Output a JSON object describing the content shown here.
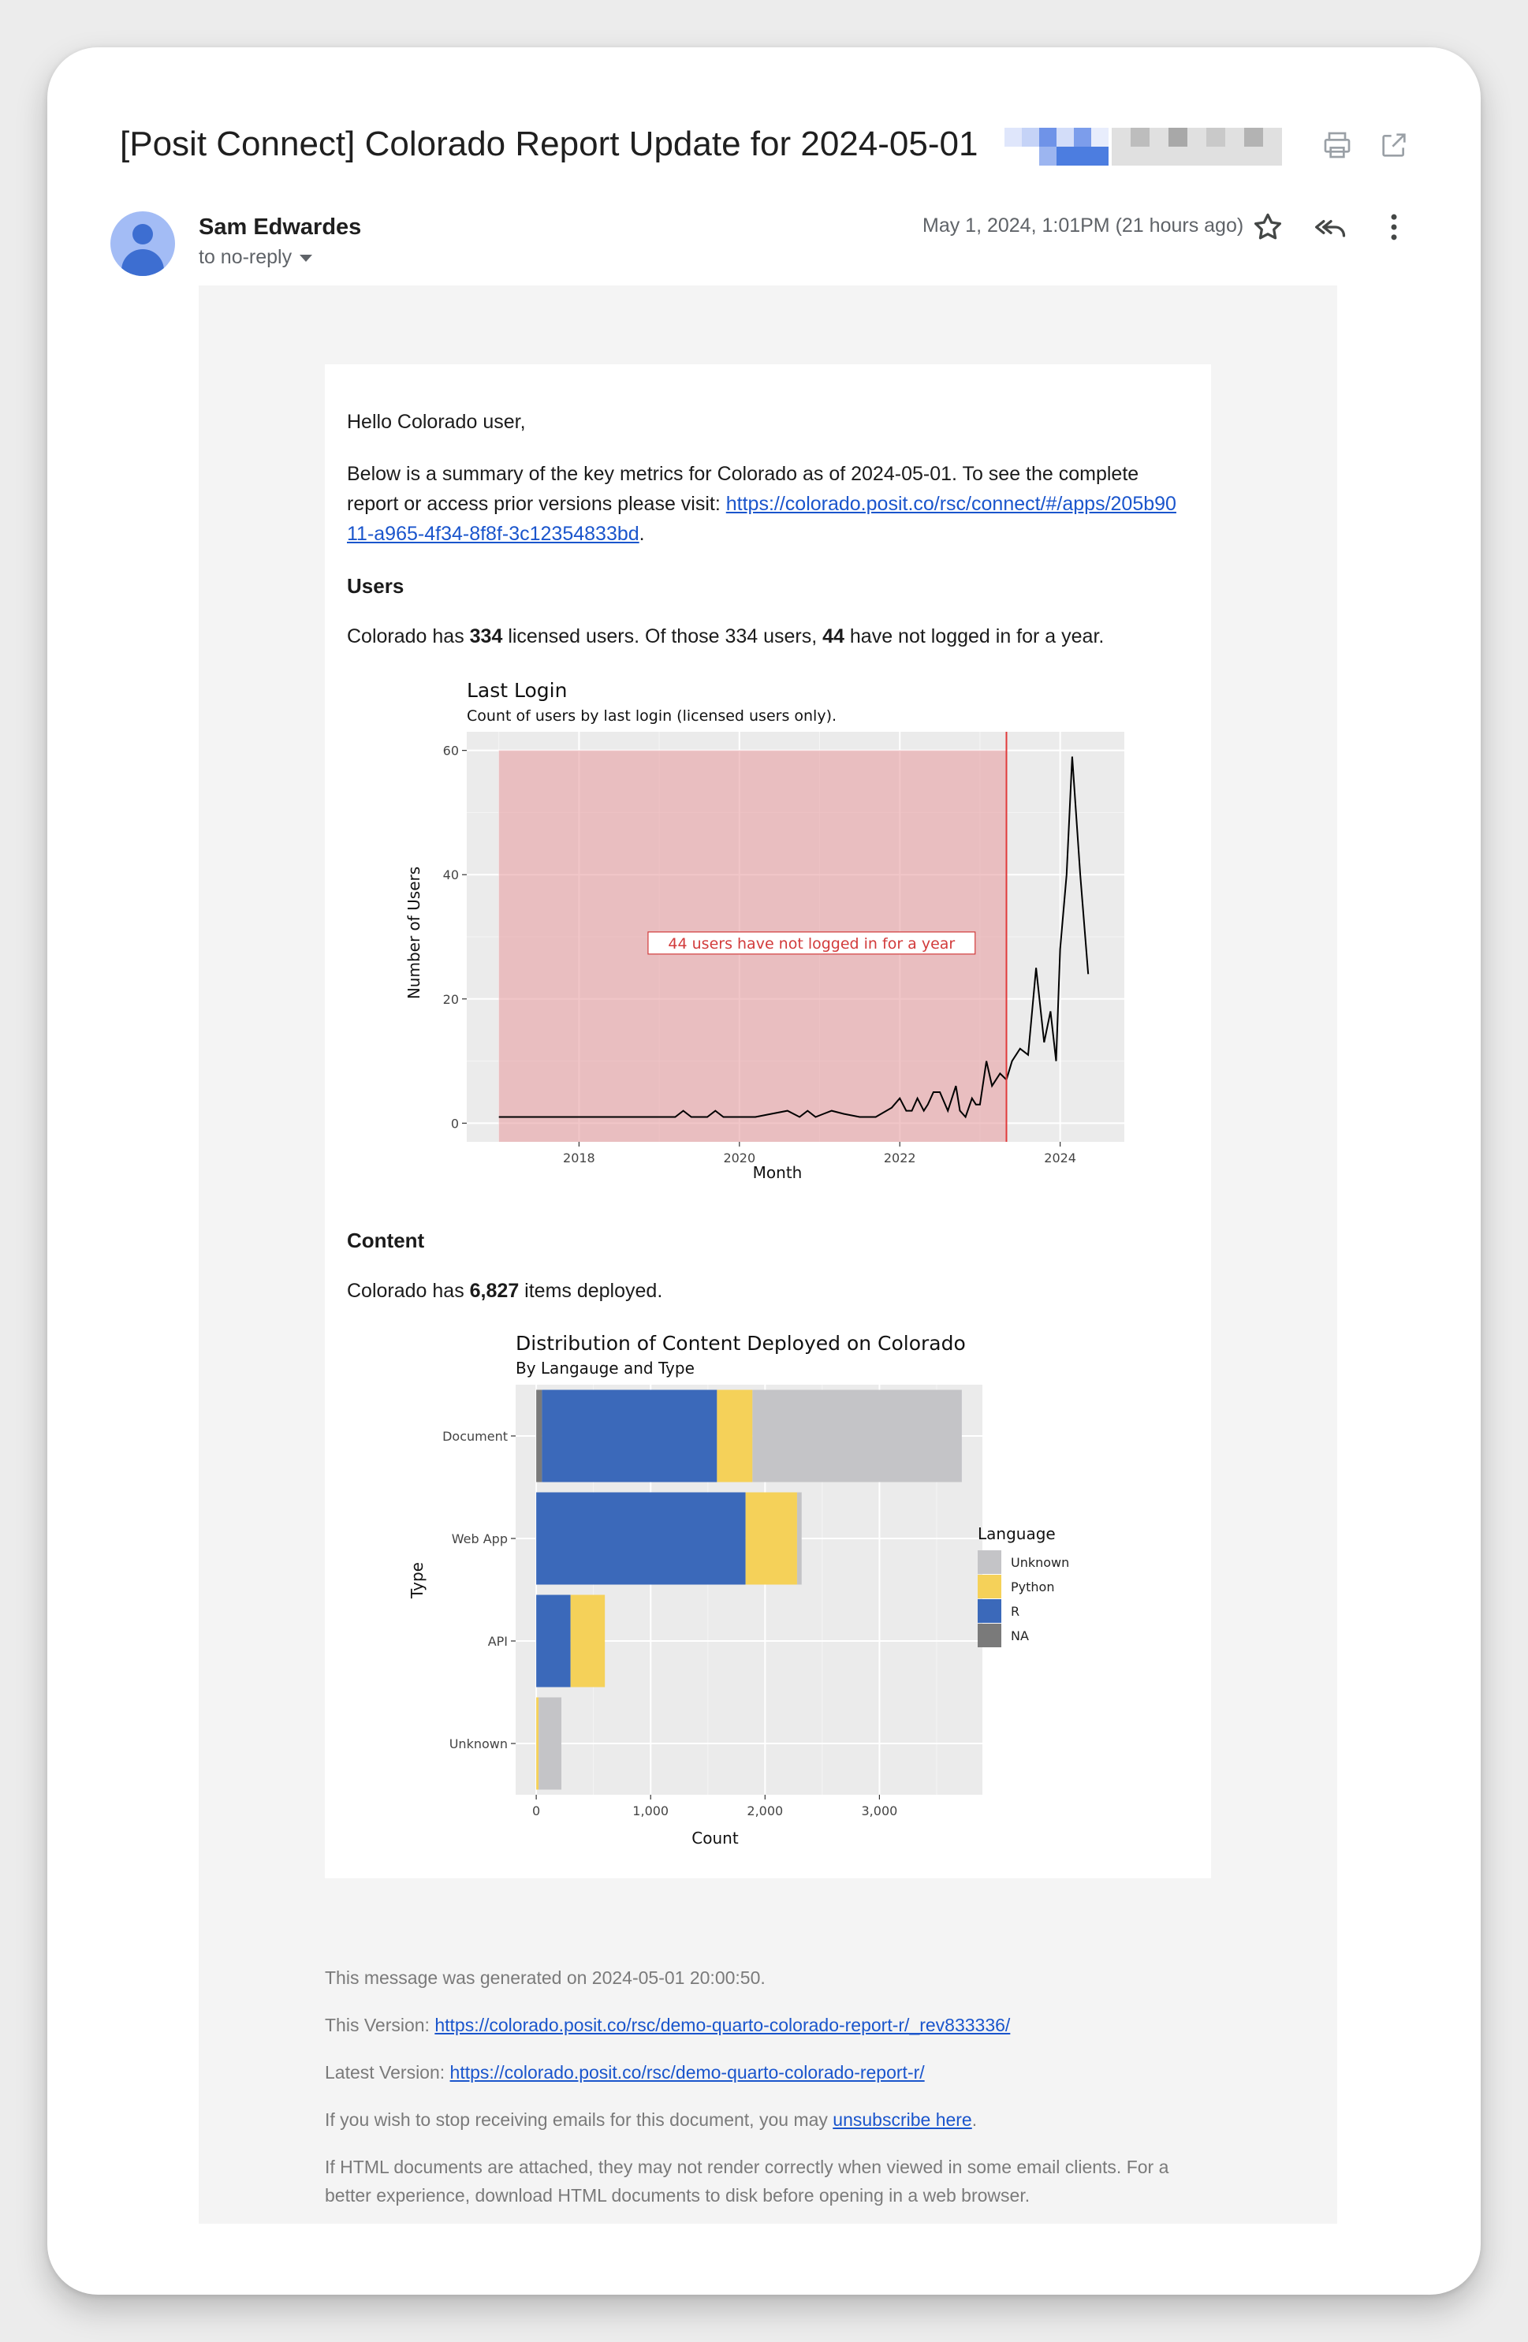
{
  "subject": "[Posit Connect] Colorado Report Update for 2024-05-01",
  "sender": {
    "name": "Sam Edwardes",
    "to": "to no-reply",
    "date": "May 1, 2024, 1:01PM (21 hours ago)"
  },
  "icons": {
    "print": "print-icon",
    "open_new": "open-in-new-icon",
    "star": "star-icon",
    "reply_all": "reply-all-icon",
    "more": "more-vert-icon",
    "recipient_dropdown": "chevron-down-icon"
  },
  "body": {
    "greeting": "Hello Colorado user,",
    "intro_text": "Below is a summary of the key metrics for Colorado as of 2024-05-01. To see the complete report or access prior versions please visit: ",
    "intro_link": "https://colorado.posit.co/rsc/connect/#/apps/205b9011-a965-4f34-8f8f-3c12354833bd",
    "users_heading": "Users",
    "users_text": {
      "a": "Colorado has ",
      "licensed": "334",
      "b": " licensed users. Of those 334 users, ",
      "inactive": "44",
      "c": " have not logged in for a year."
    },
    "content_heading": "Content",
    "content_text": {
      "a": "Colorado has ",
      "items": "6,827",
      "b": " items deployed."
    }
  },
  "chart_data": [
    {
      "type": "line",
      "title": "Last Login",
      "subtitle": "Count of users by last login (licensed users only).",
      "xlabel": "Month",
      "ylabel": "Number of Users",
      "xlim": [
        2016.6,
        2024.8
      ],
      "ylim": [
        -3,
        63
      ],
      "xticks": [
        2018,
        2020,
        2022,
        2024
      ],
      "yticks": [
        0,
        20,
        40,
        60
      ],
      "shaded_region": {
        "from": 2017.0,
        "to": 2023.33,
        "color": "#e8a0a3"
      },
      "vline": {
        "x": 2023.33,
        "color": "#e03a3a"
      },
      "annotation": "44 users have not logged in for a year",
      "annotation_pos": {
        "x": 2020.9,
        "y": 29
      },
      "series": [
        {
          "x": [
            2017.0,
            2019.2,
            2019.3,
            2019.4,
            2019.6,
            2019.7,
            2019.8,
            2019.9,
            2020.2,
            2020.4,
            2020.6,
            2020.75,
            2020.85,
            2020.95,
            2021.05,
            2021.15,
            2021.3,
            2021.5,
            2021.7,
            2021.9,
            2022.0,
            2022.08,
            2022.15,
            2022.22,
            2022.3,
            2022.35,
            2022.42,
            2022.5,
            2022.6,
            2022.7,
            2022.75,
            2022.82,
            2022.9,
            2022.95,
            2023.0,
            2023.08,
            2023.15,
            2023.25,
            2023.33,
            2023.4,
            2023.5,
            2023.6,
            2023.7,
            2023.8,
            2023.88,
            2023.95,
            2024.0,
            2024.08,
            2024.15,
            2024.25,
            2024.35
          ],
          "y": [
            1,
            1,
            2,
            1,
            1,
            2,
            1,
            1,
            1,
            1.5,
            2,
            1,
            2,
            1,
            1.5,
            2,
            1.5,
            1,
            1,
            2.5,
            4,
            2,
            2,
            4,
            2,
            3,
            5,
            5,
            2,
            6,
            2,
            1,
            4,
            3,
            3,
            10,
            6,
            8,
            7,
            10,
            12,
            11,
            25,
            13,
            18,
            10,
            28,
            40,
            59,
            40,
            24
          ]
        }
      ]
    },
    {
      "type": "bar",
      "orientation": "horizontal",
      "stacked": true,
      "title": "Distribution of Content Deployed on Colorado",
      "subtitle": "By Langauge and Type",
      "xlabel": "Count",
      "ylabel": "Type",
      "xlim": [
        -180,
        3900
      ],
      "xticks": [
        0,
        1000,
        2000,
        3000
      ],
      "xtick_labels": [
        "0",
        "1,000",
        "2,000",
        "3,000"
      ],
      "categories": [
        "Document",
        "Web App",
        "API",
        "Unknown"
      ],
      "legend_title": "Language",
      "legend_position": "right",
      "series": [
        {
          "name": "NA",
          "color": "#7a7a7a",
          "values": [
            50,
            0,
            0,
            0
          ]
        },
        {
          "name": "R",
          "color": "#3b69ba",
          "values": [
            1530,
            1830,
            300,
            0
          ]
        },
        {
          "name": "Python",
          "color": "#f5d159",
          "values": [
            310,
            450,
            300,
            20
          ]
        },
        {
          "name": "Unknown",
          "color": "#c4c4c7",
          "values": [
            1830,
            40,
            0,
            200
          ]
        }
      ],
      "legend_order": [
        "Unknown",
        "Python",
        "R",
        "NA"
      ]
    }
  ],
  "footer": {
    "generated": "This message was generated on 2024-05-01 20:00:50.",
    "this_version_label": "This Version: ",
    "this_version_link": "https://colorado.posit.co/rsc/demo-quarto-colorado-report-r/_rev833336/",
    "latest_version_label": "Latest Version: ",
    "latest_version_link": "https://colorado.posit.co/rsc/demo-quarto-colorado-report-r/",
    "unsubscribe_prefix": "If you wish to stop receiving emails for this document, you may ",
    "unsubscribe_link": "unsubscribe here",
    "unsubscribe_suffix": ".",
    "html_note": "If HTML documents are attached, they may not render correctly when viewed in some email clients. For a better experience, download HTML documents to disk before opening in a web browser."
  }
}
